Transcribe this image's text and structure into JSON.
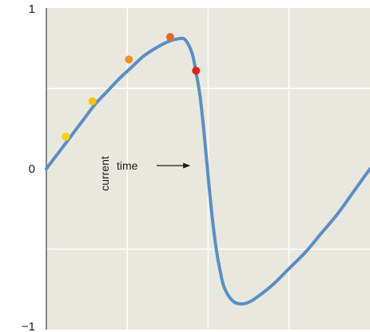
{
  "chart_data": {
    "type": "line",
    "title": "",
    "xlabel": "",
    "ylabel": "",
    "xlim": [
      0,
      4
    ],
    "ylim": [
      -1,
      1
    ],
    "grid": true,
    "y_ticks": [
      {
        "value": 1,
        "label": "1"
      },
      {
        "value": 0,
        "label": "0"
      },
      {
        "value": -1,
        "label": "−1"
      }
    ],
    "series": [
      {
        "color": "#5b8ec4",
        "x": [
          0,
          0.15,
          0.3,
          0.45,
          0.6,
          0.75,
          0.9,
          1.05,
          1.2,
          1.35,
          1.5,
          1.65,
          1.72,
          1.8,
          1.85,
          1.9,
          1.95,
          2.0,
          2.05,
          2.1,
          2.15,
          2.2,
          2.3,
          2.4,
          2.5,
          2.6,
          2.8,
          3.0,
          3.2,
          3.4,
          3.6,
          3.8,
          4.0
        ],
        "y": [
          0.0,
          0.1,
          0.2,
          0.3,
          0.4,
          0.48,
          0.56,
          0.63,
          0.7,
          0.75,
          0.79,
          0.81,
          0.8,
          0.72,
          0.6,
          0.45,
          0.22,
          -0.05,
          -0.3,
          -0.5,
          -0.64,
          -0.74,
          -0.82,
          -0.84,
          -0.83,
          -0.8,
          -0.72,
          -0.62,
          -0.52,
          -0.4,
          -0.28,
          -0.14,
          0.0
        ]
      }
    ],
    "points": [
      {
        "x": 0.24,
        "y": 0.2,
        "color": "#f5d400"
      },
      {
        "x": 0.57,
        "y": 0.42,
        "color": "#f5c400"
      },
      {
        "x": 1.02,
        "y": 0.68,
        "color": "#f0922a"
      },
      {
        "x": 1.53,
        "y": 0.82,
        "color": "#ea6a2a"
      },
      {
        "x": 1.85,
        "y": 0.61,
        "color": "#e02020"
      }
    ],
    "annotation": {
      "line1": "current",
      "line2": "time",
      "arrow_from": {
        "x": 0.82,
        "y": 0.02
      },
      "arrow_to": {
        "x": 1.78,
        "y": 0.02
      }
    },
    "colors": {
      "plot_background": "#e9e8df",
      "grid": "#ffffff",
      "axis": "#1a1a1a"
    }
  }
}
